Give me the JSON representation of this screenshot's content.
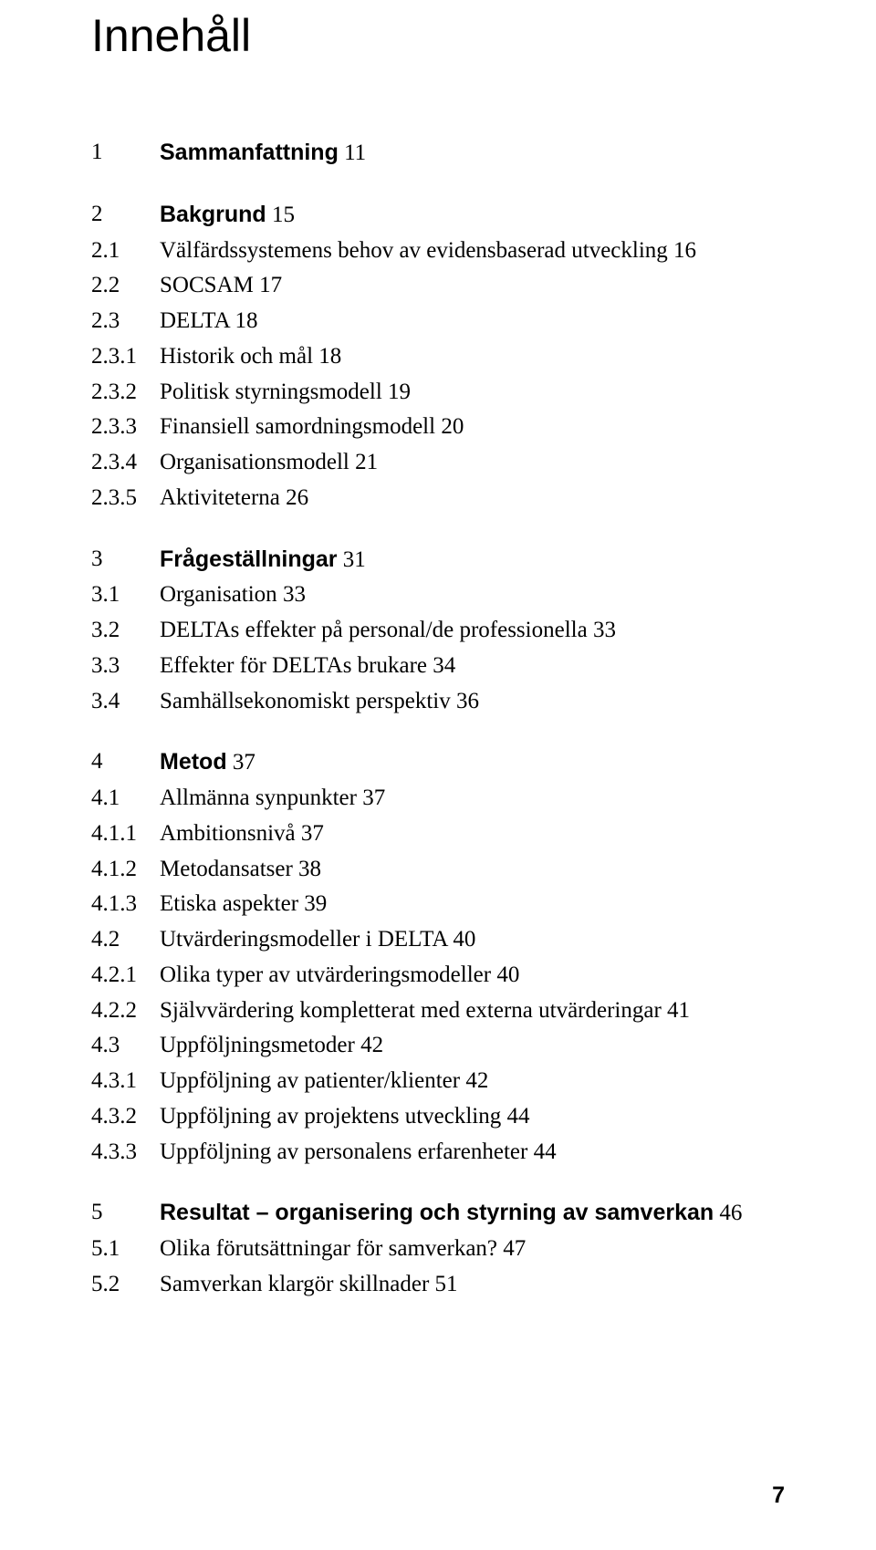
{
  "page_title": "Innehåll",
  "page_number": "7",
  "sections": [
    {
      "entries": [
        {
          "num": "1",
          "label": "Sammanfattning",
          "page": "11",
          "bold": true
        }
      ]
    },
    {
      "entries": [
        {
          "num": "2",
          "label": "Bakgrund",
          "page": "15",
          "bold": true
        },
        {
          "num": "2.1",
          "label": "Välfärdssystemens behov av evidensbaserad utveckling",
          "page": "16"
        },
        {
          "num": "2.2",
          "label": "SOCSAM",
          "page": "17"
        },
        {
          "num": "2.3",
          "label": "DELTA",
          "page": "18"
        },
        {
          "num": "2.3.1",
          "label": "Historik och mål",
          "page": "18"
        },
        {
          "num": "2.3.2",
          "label": "Politisk styrningsmodell",
          "page": "19"
        },
        {
          "num": "2.3.3",
          "label": "Finansiell samordningsmodell",
          "page": "20"
        },
        {
          "num": "2.3.4",
          "label": "Organisationsmodell",
          "page": "21"
        },
        {
          "num": "2.3.5",
          "label": "Aktiviteterna",
          "page": "26"
        }
      ]
    },
    {
      "entries": [
        {
          "num": "3",
          "label": "Frågeställningar",
          "page": "31",
          "bold": true
        },
        {
          "num": "3.1",
          "label": "Organisation",
          "page": "33"
        },
        {
          "num": "3.2",
          "label": "DELTAs effekter på personal/de professionella",
          "page": "33"
        },
        {
          "num": "3.3",
          "label": "Effekter för DELTAs brukare",
          "page": "34"
        },
        {
          "num": "3.4",
          "label": "Samhällsekonomiskt perspektiv",
          "page": "36"
        }
      ]
    },
    {
      "entries": [
        {
          "num": "4",
          "label": "Metod",
          "page": "37",
          "bold": true
        },
        {
          "num": "4.1",
          "label": "Allmänna synpunkter",
          "page": "37"
        },
        {
          "num": "4.1.1",
          "label": "Ambitionsnivå",
          "page": "37"
        },
        {
          "num": "4.1.2",
          "label": "Metodansatser",
          "page": "38"
        },
        {
          "num": "4.1.3",
          "label": "Etiska aspekter",
          "page": "39"
        },
        {
          "num": "4.2",
          "label": "Utvärderingsmodeller i DELTA",
          "page": "40"
        },
        {
          "num": "4.2.1",
          "label": "Olika typer av utvärderingsmodeller",
          "page": "40"
        },
        {
          "num": "4.2.2",
          "label": "Självvärdering kompletterat med externa utvärderingar",
          "page": "41"
        },
        {
          "num": "4.3",
          "label": "Uppföljningsmetoder",
          "page": "42"
        },
        {
          "num": "4.3.1",
          "label": "Uppföljning av patienter/klienter",
          "page": "42"
        },
        {
          "num": "4.3.2",
          "label": "Uppföljning av projektens utveckling",
          "page": "44"
        },
        {
          "num": "4.3.3",
          "label": "Uppföljning av personalens erfarenheter",
          "page": "44"
        }
      ]
    },
    {
      "entries": [
        {
          "num": "5",
          "label": "Resultat – organisering och styrning av samverkan",
          "page": "46",
          "bold": true
        },
        {
          "num": "5.1",
          "label": "Olika förutsättningar för samverkan?",
          "page": "47"
        },
        {
          "num": "5.2",
          "label": "Samverkan klargör skillnader",
          "page": "51"
        }
      ]
    }
  ]
}
